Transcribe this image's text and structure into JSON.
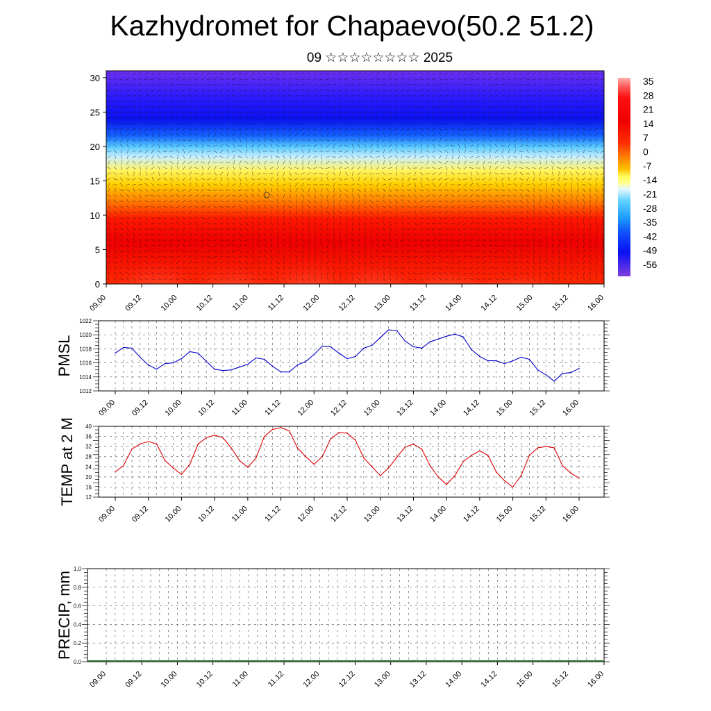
{
  "header": {
    "title": "Kazhydromet for Chapaevo(50.2 51.2)",
    "subtitle": "09 ☆☆☆☆☆☆☆☆ 2025"
  },
  "colors": {
    "pmsl_line": "#0000cc",
    "temp_line": "#dd0000",
    "axis": "#000000",
    "grid": "#555555"
  },
  "chart_data": [
    {
      "type": "heatmap",
      "name_hint": "cross-section",
      "x_tick_labels": [
        "09.00",
        "09.12",
        "10.00",
        "10.12",
        "11.00",
        "11.12",
        "12.00",
        "12.12",
        "13.00",
        "13.12",
        "14.00",
        "14.12",
        "15.00",
        "15.12",
        "16.00"
      ],
      "y_ticks": [
        0,
        5,
        10,
        15,
        20,
        25,
        30
      ],
      "ylim": [
        0,
        31
      ],
      "colorbar_labels": [
        "35",
        "28",
        "21",
        "14",
        "7",
        "0",
        "-7",
        "-14",
        "-21",
        "-28",
        "-35",
        "-42",
        "-49",
        "-56"
      ],
      "colorbar_range": [
        -60,
        38
      ],
      "gradient_stops": [
        {
          "value": 0,
          "color": "#ff2a00"
        },
        {
          "value": 6,
          "color": "#ee0000"
        },
        {
          "value": 9.5,
          "color": "#ff1800"
        },
        {
          "value": 12,
          "color": "#ff7a00"
        },
        {
          "value": 14.5,
          "color": "#ffd000"
        },
        {
          "value": 16.5,
          "color": "#fff460"
        },
        {
          "value": 18.5,
          "color": "#c8eeff"
        },
        {
          "value": 20,
          "color": "#55c8ff"
        },
        {
          "value": 21.5,
          "color": "#1464ff"
        },
        {
          "value": 24,
          "color": "#0a12ee"
        },
        {
          "value": 27,
          "color": "#2a1aff"
        },
        {
          "value": 31,
          "color": "#6a30f0"
        }
      ],
      "warm_cores": [
        {
          "x": 0.4,
          "level": 2.5
        },
        {
          "x": 1.5,
          "level": 2.0
        },
        {
          "x": 2.55,
          "level": 2.5
        },
        {
          "x": 3.5,
          "level": 2.0
        },
        {
          "x": 4.5,
          "level": 1.5
        },
        {
          "x": 5.5,
          "level": 1.0
        }
      ]
    },
    {
      "type": "line",
      "ylabel": "PMSL",
      "x_tick_labels": [
        "09.00",
        "09.12",
        "10.00",
        "10.12",
        "11.00",
        "11.12",
        "12.00",
        "12.12",
        "13.00",
        "13.12",
        "14.00",
        "14.12",
        "15.00",
        "15.12",
        "16.00"
      ],
      "ylim": [
        1012,
        1022
      ],
      "y_ticks": [
        1012,
        1014,
        1016,
        1018,
        1020,
        1022
      ],
      "series": [
        {
          "values": [
            1017.4,
            1018.2,
            1018.1,
            1016.8,
            1015.7,
            1015.1,
            1015.9,
            1016.0,
            1016.6,
            1017.6,
            1017.4,
            1016.2,
            1015.1,
            1014.9,
            1015.0,
            1015.4,
            1015.8,
            1016.7,
            1016.5,
            1015.5,
            1014.7,
            1014.7,
            1015.7,
            1016.2,
            1017.2,
            1018.4,
            1018.3,
            1017.4,
            1016.6,
            1016.9,
            1018.1,
            1018.5,
            1019.6,
            1020.7,
            1020.6,
            1019.1,
            1018.3,
            1018.1,
            1019.0,
            1019.4,
            1019.8,
            1020.1,
            1019.7,
            1017.9,
            1016.9,
            1016.3,
            1016.3,
            1015.9,
            1016.3,
            1016.8,
            1016.5,
            1015.0,
            1014.3,
            1013.4,
            1014.5,
            1014.6,
            1015.2
          ]
        }
      ]
    },
    {
      "type": "line",
      "ylabel": "TEMP at 2 M",
      "x_tick_labels": [
        "09.00",
        "09.12",
        "10.00",
        "10.12",
        "11.00",
        "11.12",
        "12.00",
        "12.12",
        "13.00",
        "13.12",
        "14.00",
        "14.12",
        "15.00",
        "15.12",
        "16.00"
      ],
      "ylim": [
        12,
        40
      ],
      "y_ticks": [
        12,
        16,
        20,
        24,
        28,
        32,
        36,
        40
      ],
      "series": [
        {
          "values": [
            22.0,
            24.5,
            31.0,
            33.0,
            34.0,
            33.0,
            26.5,
            23.5,
            21.0,
            25.0,
            33.0,
            35.5,
            36.5,
            35.5,
            31.5,
            26.5,
            23.8,
            27.5,
            36.0,
            38.8,
            39.5,
            38.2,
            31.5,
            28.0,
            25.0,
            28.0,
            35.0,
            37.5,
            37.3,
            34.5,
            27.5,
            24.0,
            20.5,
            23.5,
            27.8,
            31.8,
            33.0,
            31.0,
            24.5,
            20.0,
            17.0,
            20.5,
            26.0,
            28.5,
            30.3,
            28.5,
            22.0,
            18.5,
            16.0,
            20.5,
            28.5,
            31.5,
            32.0,
            31.5,
            24.5,
            21.5,
            19.5
          ]
        }
      ]
    },
    {
      "type": "bar",
      "ylabel": "PRECIP, mm",
      "x_tick_labels": [
        "09.00",
        "09.12",
        "10.00",
        "10.12",
        "11.00",
        "11.12",
        "12.00",
        "12.12",
        "13.00",
        "13.12",
        "14.00",
        "14.12",
        "15.00",
        "15.12",
        "16.00"
      ],
      "ylim": [
        0,
        1
      ],
      "y_ticks": [
        "0.0",
        "0.2",
        "0.4",
        "0.6",
        "0.8",
        "1.0"
      ],
      "values": []
    }
  ]
}
